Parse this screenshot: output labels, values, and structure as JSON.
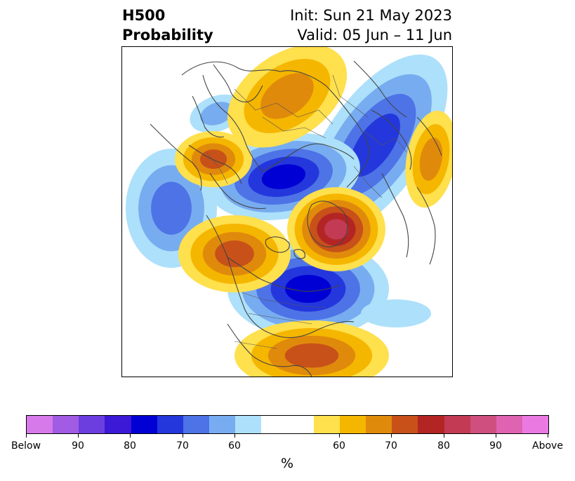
{
  "header": {
    "title_line1": "H500",
    "title_line2": "Probability",
    "init": "Init: Sun 21 May 2023",
    "valid": "Valid: 05 Jun – 11 Jun"
  },
  "colorbar": {
    "colors": [
      "#d77ae9",
      "#a25be3",
      "#6c3ee0",
      "#3b19d6",
      "#0000d4",
      "#2437dc",
      "#4d73e6",
      "#78acf0",
      "#ade0fa",
      "#ffffff",
      "#ffffff",
      "#ffe04d",
      "#f5b600",
      "#e08a0c",
      "#c75119",
      "#b32524",
      "#c23a53",
      "#cf4f7e",
      "#de63b0",
      "#ea7ae2"
    ],
    "tick_labels": [
      "Below",
      "90",
      "80",
      "70",
      "60",
      "60",
      "70",
      "80",
      "90",
      "Above"
    ],
    "units": "%"
  },
  "map": {
    "projection": "polar stereographic, North Pole",
    "colors": {
      "blue_light": "#ade0fa",
      "blue_mid": "#78acf0",
      "blue": "#4d73e6",
      "blue_deep": "#2437dc",
      "blue_core": "#0000d4",
      "yellow": "#ffe04d",
      "gold": "#f5b600",
      "orange": "#e08a0c",
      "rust": "#c75119",
      "red": "#b32524",
      "crimson": "#c23a53",
      "coast": "#444444"
    }
  }
}
